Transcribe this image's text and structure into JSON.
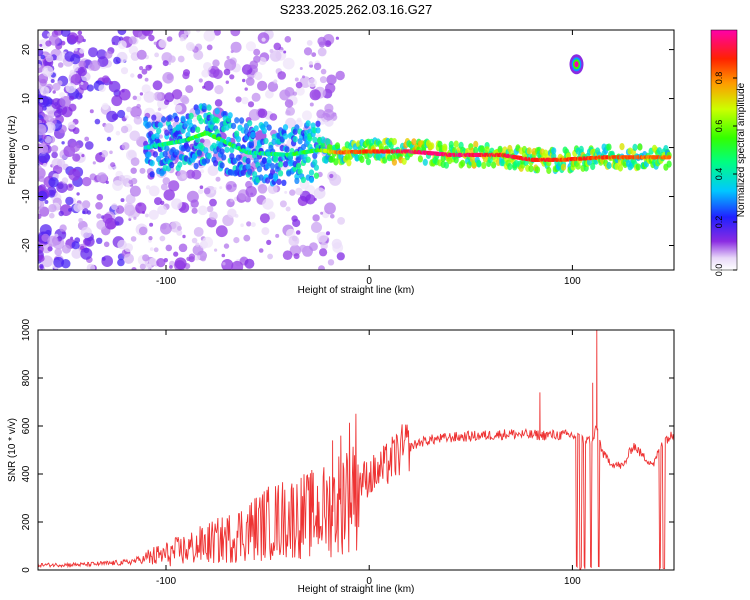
{
  "title": "S233.2025.262.03.16.G27",
  "chart_data": [
    {
      "type": "heatmap",
      "name": "spectrogram",
      "xlabel": "Height of straight line (km)",
      "ylabel": "Frequency (Hz)",
      "xlim": [
        -163,
        150
      ],
      "ylim": [
        -25,
        24
      ],
      "xticks": [
        -100,
        0,
        100
      ],
      "yticks": [
        -20,
        -10,
        0,
        10,
        20
      ],
      "colorbar": {
        "label": "Normalized spectral amplitude",
        "range": [
          0.0,
          1.0
        ],
        "ticks": [
          0.0,
          0.2,
          0.4,
          0.6,
          0.8
        ]
      },
      "ridge": [
        {
          "x": -110,
          "f": 0.0,
          "a": 0.45
        },
        {
          "x": -90,
          "f": 1.5,
          "a": 0.55
        },
        {
          "x": -80,
          "f": 3.0,
          "a": 0.6
        },
        {
          "x": -60,
          "f": -1.0,
          "a": 0.5
        },
        {
          "x": -40,
          "f": -1.5,
          "a": 0.55
        },
        {
          "x": -25,
          "f": -0.5,
          "a": 0.6
        },
        {
          "x": -15,
          "f": -1.0,
          "a": 0.85
        },
        {
          "x": 0,
          "f": -0.8,
          "a": 0.9
        },
        {
          "x": 20,
          "f": -0.8,
          "a": 1.0
        },
        {
          "x": 40,
          "f": -1.5,
          "a": 1.0
        },
        {
          "x": 65,
          "f": -1.5,
          "a": 0.95
        },
        {
          "x": 80,
          "f": -2.5,
          "a": 0.95
        },
        {
          "x": 95,
          "f": -2.5,
          "a": 0.9
        },
        {
          "x": 115,
          "f": -2.0,
          "a": 0.9
        },
        {
          "x": 148,
          "f": -2.0,
          "a": 0.85
        }
      ],
      "isolated_peak": {
        "x": 102,
        "f": 17,
        "a": 1.0
      }
    },
    {
      "type": "line",
      "name": "snr",
      "xlabel": "Height of straight line (km)",
      "ylabel": "SNR (10 * v/v)",
      "xlim": [
        -163,
        150
      ],
      "ylim": [
        0,
        1000
      ],
      "xticks": [
        -100,
        0,
        100
      ],
      "yticks": [
        0,
        200,
        400,
        600,
        800,
        1000
      ],
      "color": "#ee3333",
      "series": [
        {
          "name": "SNR",
          "x": [
            -163,
            -140,
            -120,
            -110,
            -100,
            -90,
            -80,
            -70,
            -60,
            -50,
            -40,
            -30,
            -25,
            -20,
            -15,
            -10,
            -5,
            0,
            5,
            10,
            15,
            20,
            25,
            30,
            40,
            50,
            60,
            70,
            80,
            90,
            100,
            105,
            110,
            112,
            115,
            120,
            125,
            130,
            135,
            140,
            145,
            150
          ],
          "y": [
            20,
            22,
            30,
            45,
            60,
            80,
            100,
            120,
            150,
            180,
            200,
            210,
            220,
            230,
            260,
            330,
            360,
            380,
            400,
            440,
            480,
            510,
            530,
            540,
            550,
            555,
            560,
            565,
            560,
            560,
            560,
            540,
            540,
            590,
            480,
            440,
            430,
            520,
            470,
            440,
            540,
            560
          ]
        }
      ],
      "spikes": [
        {
          "x": 84,
          "y": 740
        },
        {
          "x": 112,
          "y": 1000
        },
        {
          "x": 110,
          "y": 780
        },
        {
          "x": -14,
          "y": 560
        },
        {
          "x": -18,
          "y": 540
        }
      ],
      "dropouts": [
        102,
        104,
        106,
        109,
        113,
        143,
        145
      ]
    }
  ]
}
